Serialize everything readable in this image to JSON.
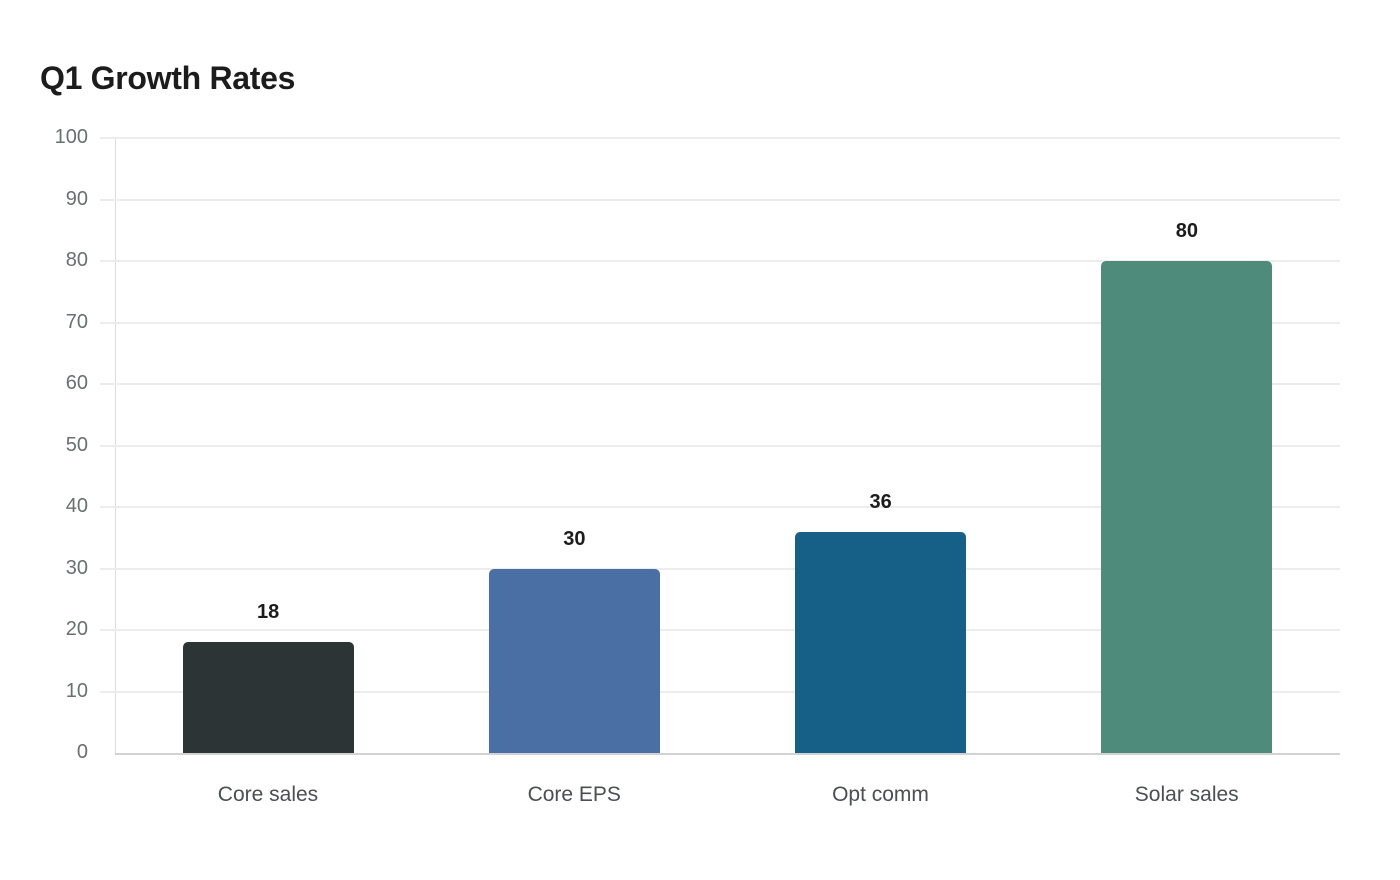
{
  "chart_data": {
    "type": "bar",
    "title": "Q1 Growth Rates",
    "xlabel": "",
    "ylabel": "",
    "categories": [
      "Core sales",
      "Core EPS",
      "Opt comm",
      "Solar sales"
    ],
    "values": [
      18,
      30,
      36,
      80
    ],
    "colors": [
      "#2d3436",
      "#4a6fa5",
      "#166088",
      "#4e8b7a"
    ],
    "data_labels": [
      "18",
      "30",
      "36",
      "80"
    ],
    "ylim": [
      0,
      100
    ],
    "yticks": [
      0,
      10,
      20,
      30,
      40,
      50,
      60,
      70,
      80,
      90,
      100
    ],
    "ytick_labels": [
      "0",
      "10",
      "20",
      "30",
      "40",
      "50",
      "60",
      "70",
      "80",
      "90",
      "100"
    ],
    "grid": true,
    "legend": null
  }
}
